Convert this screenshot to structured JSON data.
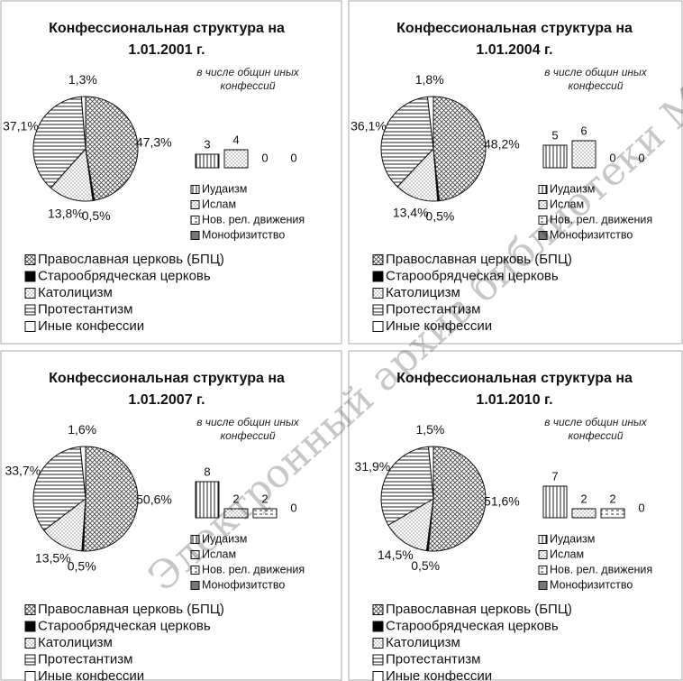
{
  "watermark": "Электронный архив библиотеки МГУ",
  "chart_data": [
    {
      "type": "pie",
      "title": "Конфессиональная структура на 1.01.2001 г.",
      "categories": [
        "Православная церковь (БПЦ)",
        "Старообрядческая церковь",
        "Католицизм",
        "Протестантизм",
        "Иные конфессии"
      ],
      "values": [
        47.3,
        0.5,
        13.8,
        37.1,
        1.3
      ],
      "value_labels": [
        "47,3%",
        "0,5%",
        "13,8%",
        "37,1%",
        "1,3%"
      ]
    },
    {
      "type": "bar",
      "subtitle": "в числе общин иных конфессий",
      "categories": [
        "Иудаизм",
        "Ислам",
        "Нов. рел. движения",
        "Монофизитство"
      ],
      "values": [
        3,
        4,
        0,
        0
      ]
    },
    {
      "type": "pie",
      "title": "Конфессиональная структура на 1.01.2004 г.",
      "categories": [
        "Православная церковь (БПЦ)",
        "Старообрядческая церковь",
        "Католицизм",
        "Протестантизм",
        "Иные конфессии"
      ],
      "values": [
        48.2,
        0.5,
        13.4,
        36.1,
        1.8
      ],
      "value_labels": [
        "48,2%",
        "0,5%",
        "13,4%",
        "36,1%",
        "1,8%"
      ]
    },
    {
      "type": "bar",
      "subtitle": "в числе общин иных конфессий",
      "categories": [
        "Иудаизм",
        "Ислам",
        "Нов. рел. движения",
        "Монофизитство"
      ],
      "values": [
        5,
        6,
        0,
        0
      ]
    },
    {
      "type": "pie",
      "title": "Конфессиональная структура на 1.01.2007 г.",
      "categories": [
        "Православная церковь (БПЦ)",
        "Старообрядческая церковь",
        "Католицизм",
        "Протестантизм",
        "Иные конфессии"
      ],
      "values": [
        50.6,
        0.5,
        13.5,
        33.7,
        1.6
      ],
      "value_labels": [
        "50,6%",
        "0,5%",
        "13,5%",
        "33,7%",
        "1,6%"
      ]
    },
    {
      "type": "bar",
      "subtitle": "в числе общин иных конфессий",
      "categories": [
        "Иудаизм",
        "Ислам",
        "Нов. рел. движения",
        "Монофизитство"
      ],
      "values": [
        8,
        2,
        2,
        0
      ]
    },
    {
      "type": "pie",
      "title": "Конфессиональная структура на 1.01.2010 г.",
      "categories": [
        "Православная церковь (БПЦ)",
        "Старообрядческая церковь",
        "Католицизм",
        "Протестантизм",
        "Иные конфессии"
      ],
      "values": [
        51.6,
        0.5,
        14.5,
        31.9,
        1.5
      ],
      "value_labels": [
        "51,6%",
        "0,5%",
        "14,5%",
        "31,9%",
        "1,5%"
      ]
    },
    {
      "type": "bar",
      "subtitle": "в числе общин иных конфессий",
      "categories": [
        "Иудаизм",
        "Ислам",
        "Нов. рел. движения",
        "Монофизитство"
      ],
      "values": [
        7,
        2,
        2,
        0
      ]
    }
  ]
}
